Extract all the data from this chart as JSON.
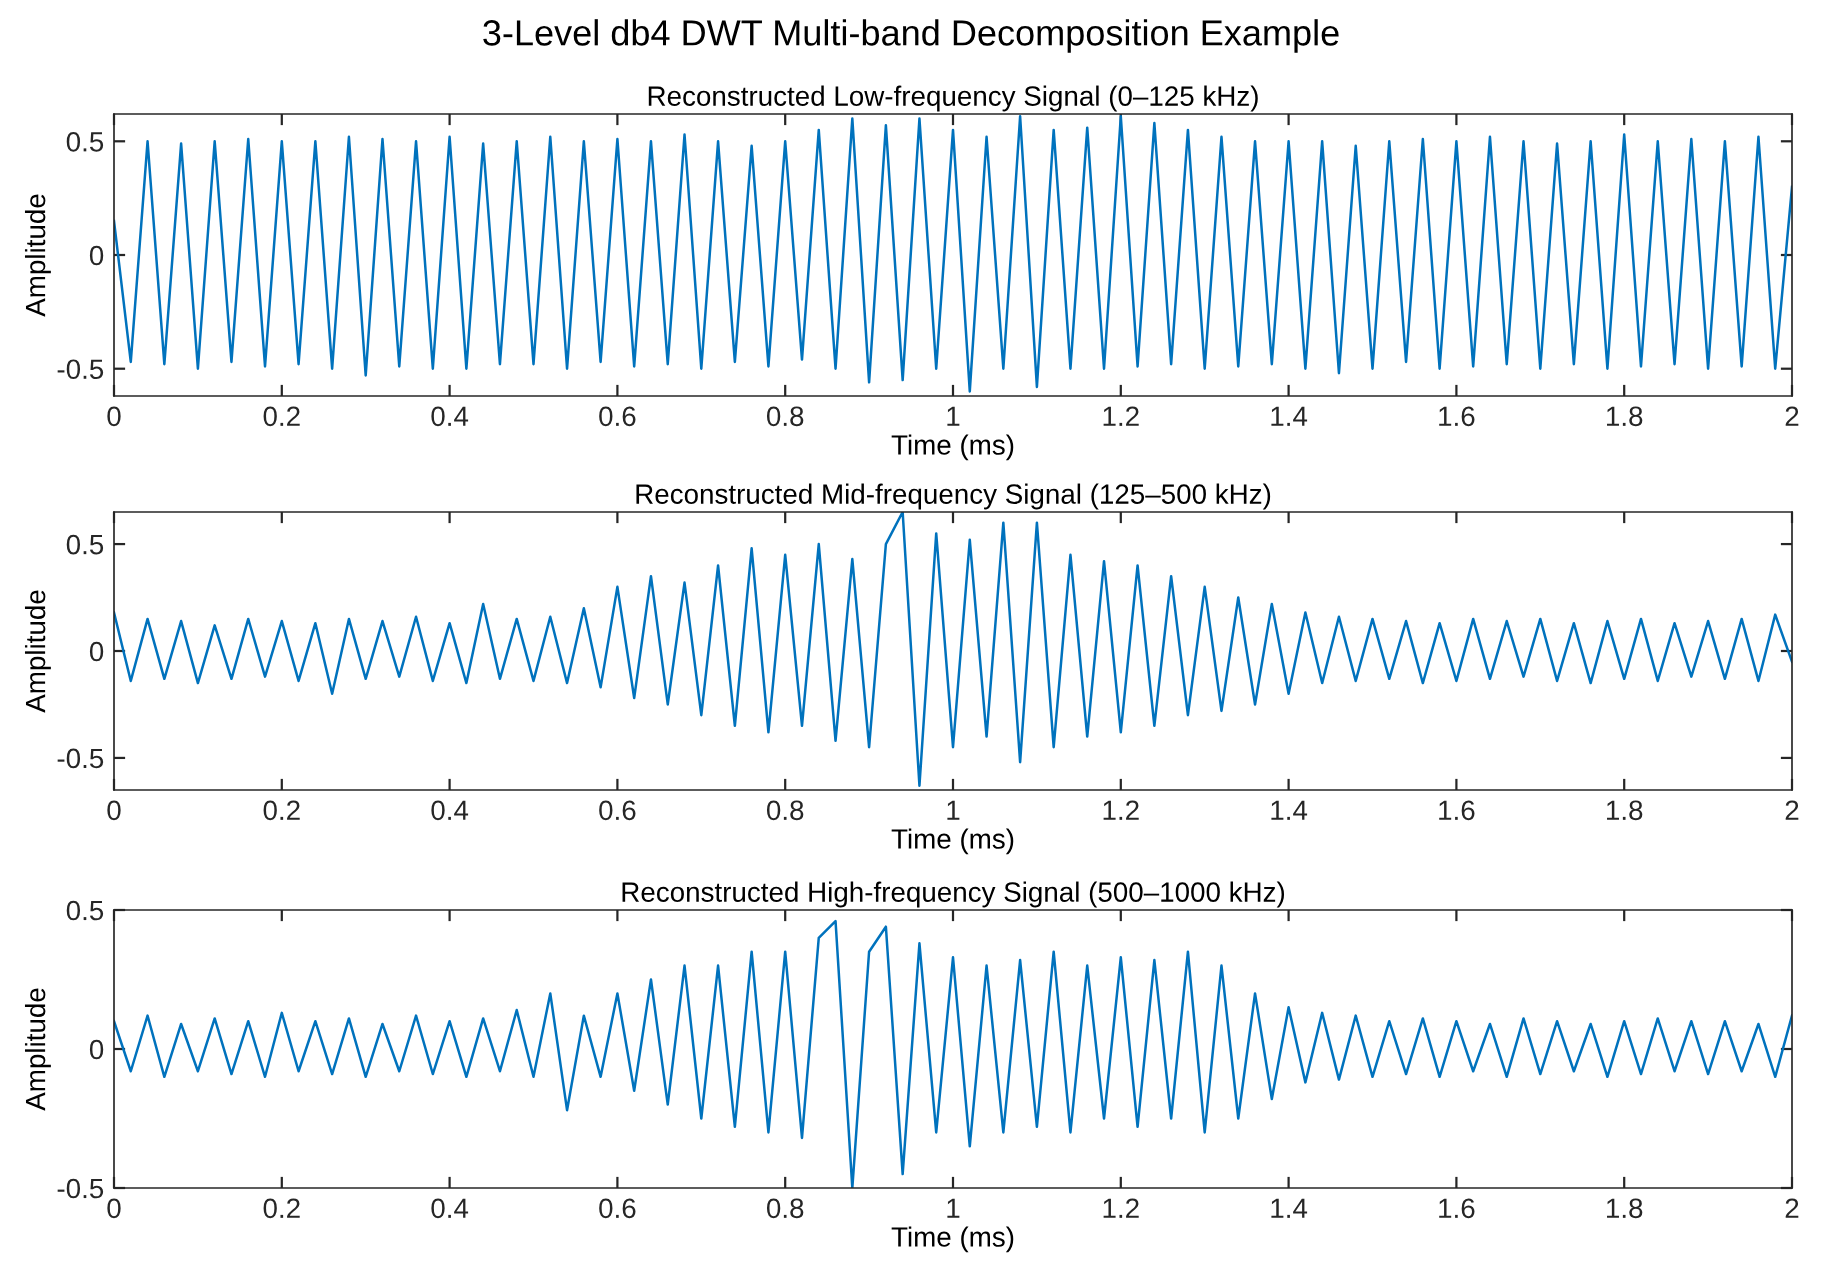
{
  "chart_data": [
    {
      "type": "line",
      "title": "3-Level db4 DWT Multi-band Decomposition Example",
      "subtitle": "Reconstructed Low-frequency Signal (0–125 kHz)",
      "xlabel": "Time (ms)",
      "ylabel": "Amplitude",
      "xlim": [
        0,
        2
      ],
      "ylim": [
        -0.62,
        0.62
      ],
      "xticks": [
        0,
        0.2,
        0.4,
        0.6,
        0.8,
        1,
        1.2,
        1.4,
        1.6,
        1.8,
        2
      ],
      "yticks": [
        -0.5,
        0,
        0.5
      ],
      "x": [
        0,
        0.02,
        0.04,
        0.06,
        0.08,
        0.1,
        0.12,
        0.14,
        0.16,
        0.18,
        0.2,
        0.22,
        0.24,
        0.26,
        0.28,
        0.3,
        0.32,
        0.34,
        0.36,
        0.38,
        0.4,
        0.42,
        0.44,
        0.46,
        0.48,
        0.5,
        0.52,
        0.54,
        0.56,
        0.58,
        0.6,
        0.62,
        0.64,
        0.66,
        0.68,
        0.7,
        0.72,
        0.74,
        0.76,
        0.78,
        0.8,
        0.82,
        0.84,
        0.86,
        0.88,
        0.9,
        0.92,
        0.94,
        0.96,
        0.98,
        1,
        1.02,
        1.04,
        1.06,
        1.08,
        1.1,
        1.12,
        1.14,
        1.16,
        1.18,
        1.2,
        1.22,
        1.24,
        1.26,
        1.28,
        1.3,
        1.32,
        1.34,
        1.36,
        1.38,
        1.4,
        1.42,
        1.44,
        1.46,
        1.48,
        1.5,
        1.52,
        1.54,
        1.56,
        1.58,
        1.6,
        1.62,
        1.64,
        1.66,
        1.68,
        1.7,
        1.72,
        1.74,
        1.76,
        1.78,
        1.8,
        1.82,
        1.84,
        1.86,
        1.88,
        1.9,
        1.92,
        1.94,
        1.96,
        1.98,
        2
      ],
      "series": [
        {
          "color": "#0072bd",
          "values": [
            0.15,
            -0.47,
            0.5,
            -0.48,
            0.49,
            -0.5,
            0.5,
            -0.47,
            0.51,
            -0.49,
            0.5,
            -0.48,
            0.5,
            -0.5,
            0.52,
            -0.53,
            0.51,
            -0.49,
            0.5,
            -0.5,
            0.52,
            -0.5,
            0.49,
            -0.48,
            0.5,
            -0.48,
            0.52,
            -0.5,
            0.5,
            -0.47,
            0.51,
            -0.49,
            0.5,
            -0.48,
            0.53,
            -0.5,
            0.5,
            -0.47,
            0.48,
            -0.49,
            0.5,
            -0.46,
            0.55,
            -0.5,
            0.6,
            -0.56,
            0.57,
            -0.55,
            0.6,
            -0.5,
            0.55,
            -0.6,
            0.52,
            -0.5,
            0.61,
            -0.58,
            0.55,
            -0.5,
            0.56,
            -0.5,
            0.61,
            -0.49,
            0.58,
            -0.48,
            0.55,
            -0.5,
            0.52,
            -0.49,
            0.5,
            -0.48,
            0.5,
            -0.5,
            0.5,
            -0.52,
            0.48,
            -0.5,
            0.5,
            -0.47,
            0.51,
            -0.5,
            0.5,
            -0.49,
            0.52,
            -0.48,
            0.5,
            -0.5,
            0.49,
            -0.48,
            0.5,
            -0.5,
            0.53,
            -0.49,
            0.5,
            -0.48,
            0.51,
            -0.5,
            0.5,
            -0.49,
            0.52,
            -0.5,
            0.3
          ]
        }
      ]
    },
    {
      "type": "line",
      "title": "Reconstructed Mid-frequency Signal (125–500 kHz)",
      "xlabel": "Time (ms)",
      "ylabel": "Amplitude",
      "xlim": [
        0,
        2
      ],
      "ylim": [
        -0.65,
        0.65
      ],
      "xticks": [
        0,
        0.2,
        0.4,
        0.6,
        0.8,
        1,
        1.2,
        1.4,
        1.6,
        1.8,
        2
      ],
      "yticks": [
        -0.5,
        0,
        0.5
      ],
      "x": [
        0,
        0.02,
        0.04,
        0.06,
        0.08,
        0.1,
        0.12,
        0.14,
        0.16,
        0.18,
        0.2,
        0.22,
        0.24,
        0.26,
        0.28,
        0.3,
        0.32,
        0.34,
        0.36,
        0.38,
        0.4,
        0.42,
        0.44,
        0.46,
        0.48,
        0.5,
        0.52,
        0.54,
        0.56,
        0.58,
        0.6,
        0.62,
        0.64,
        0.66,
        0.68,
        0.7,
        0.72,
        0.74,
        0.76,
        0.78,
        0.8,
        0.82,
        0.84,
        0.86,
        0.88,
        0.9,
        0.92,
        0.94,
        0.96,
        0.98,
        1,
        1.02,
        1.04,
        1.06,
        1.08,
        1.1,
        1.12,
        1.14,
        1.16,
        1.18,
        1.2,
        1.22,
        1.24,
        1.26,
        1.28,
        1.3,
        1.32,
        1.34,
        1.36,
        1.38,
        1.4,
        1.42,
        1.44,
        1.46,
        1.48,
        1.5,
        1.52,
        1.54,
        1.56,
        1.58,
        1.6,
        1.62,
        1.64,
        1.66,
        1.68,
        1.7,
        1.72,
        1.74,
        1.76,
        1.78,
        1.8,
        1.82,
        1.84,
        1.86,
        1.88,
        1.9,
        1.92,
        1.94,
        1.96,
        1.98,
        2
      ],
      "series": [
        {
          "color": "#0072bd",
          "values": [
            0.18,
            -0.14,
            0.15,
            -0.13,
            0.14,
            -0.15,
            0.12,
            -0.13,
            0.15,
            -0.12,
            0.14,
            -0.14,
            0.13,
            -0.2,
            0.15,
            -0.13,
            0.14,
            -0.12,
            0.16,
            -0.14,
            0.13,
            -0.15,
            0.22,
            -0.13,
            0.15,
            -0.14,
            0.16,
            -0.15,
            0.2,
            -0.17,
            0.3,
            -0.22,
            0.35,
            -0.25,
            0.32,
            -0.3,
            0.4,
            -0.35,
            0.48,
            -0.38,
            0.45,
            -0.35,
            0.5,
            -0.42,
            0.43,
            -0.45,
            0.5,
            0.65,
            -0.63,
            0.55,
            -0.45,
            0.52,
            -0.4,
            0.6,
            -0.52,
            0.6,
            -0.45,
            0.45,
            -0.4,
            0.42,
            -0.38,
            0.4,
            -0.35,
            0.35,
            -0.3,
            0.3,
            -0.28,
            0.25,
            -0.25,
            0.22,
            -0.2,
            0.18,
            -0.15,
            0.16,
            -0.14,
            0.15,
            -0.13,
            0.14,
            -0.15,
            0.13,
            -0.14,
            0.15,
            -0.13,
            0.14,
            -0.12,
            0.15,
            -0.14,
            0.13,
            -0.15,
            0.14,
            -0.13,
            0.15,
            -0.14,
            0.13,
            -0.12,
            0.14,
            -0.13,
            0.15,
            -0.14,
            0.17,
            -0.05
          ]
        }
      ]
    },
    {
      "type": "line",
      "title": "Reconstructed High-frequency Signal (500–1000 kHz)",
      "xlabel": "Time (ms)",
      "ylabel": "Amplitude",
      "xlim": [
        0,
        2
      ],
      "ylim": [
        -0.5,
        0.5
      ],
      "xticks": [
        0,
        0.2,
        0.4,
        0.6,
        0.8,
        1,
        1.2,
        1.4,
        1.6,
        1.8,
        2
      ],
      "yticks": [
        -0.5,
        0,
        0.5
      ],
      "x": [
        0,
        0.02,
        0.04,
        0.06,
        0.08,
        0.1,
        0.12,
        0.14,
        0.16,
        0.18,
        0.2,
        0.22,
        0.24,
        0.26,
        0.28,
        0.3,
        0.32,
        0.34,
        0.36,
        0.38,
        0.4,
        0.42,
        0.44,
        0.46,
        0.48,
        0.5,
        0.52,
        0.54,
        0.56,
        0.58,
        0.6,
        0.62,
        0.64,
        0.66,
        0.68,
        0.7,
        0.72,
        0.74,
        0.76,
        0.78,
        0.8,
        0.82,
        0.84,
        0.86,
        0.88,
        0.9,
        0.92,
        0.94,
        0.96,
        0.98,
        1,
        1.02,
        1.04,
        1.06,
        1.08,
        1.1,
        1.12,
        1.14,
        1.16,
        1.18,
        1.2,
        1.22,
        1.24,
        1.26,
        1.28,
        1.3,
        1.32,
        1.34,
        1.36,
        1.38,
        1.4,
        1.42,
        1.44,
        1.46,
        1.48,
        1.5,
        1.52,
        1.54,
        1.56,
        1.58,
        1.6,
        1.62,
        1.64,
        1.66,
        1.68,
        1.7,
        1.72,
        1.74,
        1.76,
        1.78,
        1.8,
        1.82,
        1.84,
        1.86,
        1.88,
        1.9,
        1.92,
        1.94,
        1.96,
        1.98,
        2
      ],
      "series": [
        {
          "color": "#0072bd",
          "values": [
            0.1,
            -0.08,
            0.12,
            -0.1,
            0.09,
            -0.08,
            0.11,
            -0.09,
            0.1,
            -0.1,
            0.13,
            -0.08,
            0.1,
            -0.09,
            0.11,
            -0.1,
            0.09,
            -0.08,
            0.12,
            -0.09,
            0.1,
            -0.1,
            0.11,
            -0.08,
            0.14,
            -0.1,
            0.2,
            -0.22,
            0.12,
            -0.1,
            0.2,
            -0.15,
            0.25,
            -0.2,
            0.3,
            -0.25,
            0.3,
            -0.28,
            0.35,
            -0.3,
            0.35,
            -0.32,
            0.4,
            0.46,
            -0.5,
            0.35,
            0.44,
            -0.45,
            0.38,
            -0.3,
            0.33,
            -0.35,
            0.3,
            -0.3,
            0.32,
            -0.28,
            0.35,
            -0.3,
            0.3,
            -0.25,
            0.33,
            -0.28,
            0.32,
            -0.25,
            0.35,
            -0.3,
            0.3,
            -0.25,
            0.2,
            -0.18,
            0.15,
            -0.12,
            0.13,
            -0.11,
            0.12,
            -0.1,
            0.1,
            -0.09,
            0.11,
            -0.1,
            0.1,
            -0.08,
            0.09,
            -0.1,
            0.11,
            -0.09,
            0.1,
            -0.08,
            0.09,
            -0.1,
            0.1,
            -0.09,
            0.11,
            -0.08,
            0.1,
            -0.09,
            0.1,
            -0.08,
            0.09,
            -0.1,
            0.12
          ]
        }
      ]
    }
  ]
}
